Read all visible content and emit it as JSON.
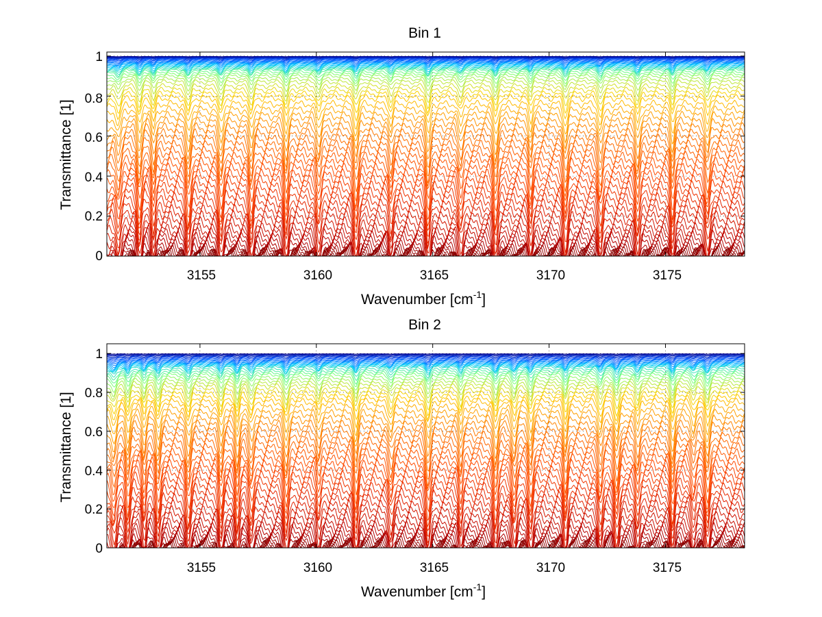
{
  "chart_data": [
    {
      "type": "line",
      "title": "Bin 1",
      "xlabel": "Wavenumber [cm",
      "xlabel_sup": "-1",
      "xlabel_end": "]",
      "ylabel": "Transmittance [1]",
      "xlim": [
        3151,
        3178.4
      ],
      "ylim": [
        0,
        1.02
      ],
      "xticks": [
        3155,
        3160,
        3165,
        3170,
        3175
      ],
      "xtick_labels": [
        "3155",
        "3160",
        "3165",
        "3170",
        "3175"
      ],
      "yticks": [
        0,
        0.2,
        0.4,
        0.6,
        0.8,
        1
      ],
      "ytick_labels": [
        "0",
        "0.2",
        "0.4",
        "0.6",
        "0.8",
        "1"
      ],
      "grid": "dotted",
      "colormap": "jet (blue at highest transmittance, dark red at lowest)",
      "colors": [
        "#00008f",
        "#0050ff",
        "#00c8ff",
        "#7dff7a",
        "#ffd000",
        "#ff7a00",
        "#ff4a00",
        "#e02000",
        "#b40000",
        "#800000"
      ],
      "series_levels": [
        0.998,
        0.996,
        0.994,
        0.992,
        0.99,
        0.987,
        0.984,
        0.98,
        0.976,
        0.972,
        0.968,
        0.964,
        0.96,
        0.955,
        0.95,
        0.945,
        0.94,
        0.935,
        0.93,
        0.92,
        0.91,
        0.9,
        0.885,
        0.87,
        0.85,
        0.83,
        0.81,
        0.79,
        0.76,
        0.73,
        0.7,
        0.67,
        0.64,
        0.61,
        0.58,
        0.55,
        0.52,
        0.49,
        0.46,
        0.43,
        0.4,
        0.37,
        0.34,
        0.31,
        0.28,
        0.25,
        0.22,
        0.19,
        0.16,
        0.13,
        0.11,
        0.09,
        0.07,
        0.05,
        0.035,
        0.025,
        0.015,
        0.008,
        0.004,
        0.001
      ],
      "absorption_lines_cm-1": [
        3151.5,
        3152.4,
        3153.0,
        3154.5,
        3155.9,
        3157.2,
        3158.7,
        3160.1,
        3161.7,
        3163.2,
        3164.8,
        3166.2,
        3167.7,
        3169.2,
        3170.7,
        3172.2,
        3173.8,
        3175.3,
        3176.8
      ]
    },
    {
      "type": "line",
      "title": "Bin 2",
      "xlabel": "Wavenumber [cm",
      "xlabel_sup": "-1",
      "xlabel_end": "]",
      "ylabel": "Transmittance [1]",
      "xlim": [
        3151,
        3178.4
      ],
      "ylim": [
        0,
        1.05
      ],
      "xticks": [
        3155,
        3160,
        3165,
        3170,
        3175
      ],
      "xtick_labels": [
        "3155",
        "3160",
        "3165",
        "3170",
        "3175"
      ],
      "yticks": [
        0,
        0.2,
        0.4,
        0.6,
        0.8,
        1
      ],
      "ytick_labels": [
        "0",
        "0.2",
        "0.4",
        "0.6",
        "0.8",
        "1"
      ],
      "grid": "dotted",
      "colormap": "jet (blue at highest transmittance, dark red at lowest)",
      "colors": [
        "#00008f",
        "#0050ff",
        "#00c8ff",
        "#7dff7a",
        "#ffd000",
        "#ff7a00",
        "#ff4a00",
        "#e02000",
        "#b40000",
        "#800000"
      ],
      "series_levels": [
        0.998,
        0.995,
        0.992,
        0.988,
        0.984,
        0.98,
        0.975,
        0.97,
        0.965,
        0.96,
        0.955,
        0.95,
        0.945,
        0.94,
        0.935,
        0.93,
        0.92,
        0.91,
        0.9,
        0.89,
        0.875,
        0.86,
        0.845,
        0.83,
        0.81,
        0.79,
        0.77,
        0.75,
        0.72,
        0.69,
        0.66,
        0.63,
        0.6,
        0.57,
        0.54,
        0.51,
        0.48,
        0.45,
        0.42,
        0.39,
        0.36,
        0.33,
        0.3,
        0.27,
        0.24,
        0.21,
        0.18,
        0.15,
        0.12,
        0.1,
        0.08,
        0.06,
        0.045,
        0.03,
        0.02,
        0.012,
        0.006,
        0.002
      ],
      "absorption_lines_cm-1": [
        3151.3,
        3151.9,
        3152.6,
        3153.2,
        3154.5,
        3155.9,
        3156.6,
        3157.2,
        3158.7,
        3160.1,
        3161.7,
        3163.2,
        3164.8,
        3166.2,
        3167.7,
        3168.5,
        3169.2,
        3170.7,
        3172.2,
        3172.9,
        3173.8,
        3175.3,
        3176.2,
        3176.8
      ]
    }
  ]
}
